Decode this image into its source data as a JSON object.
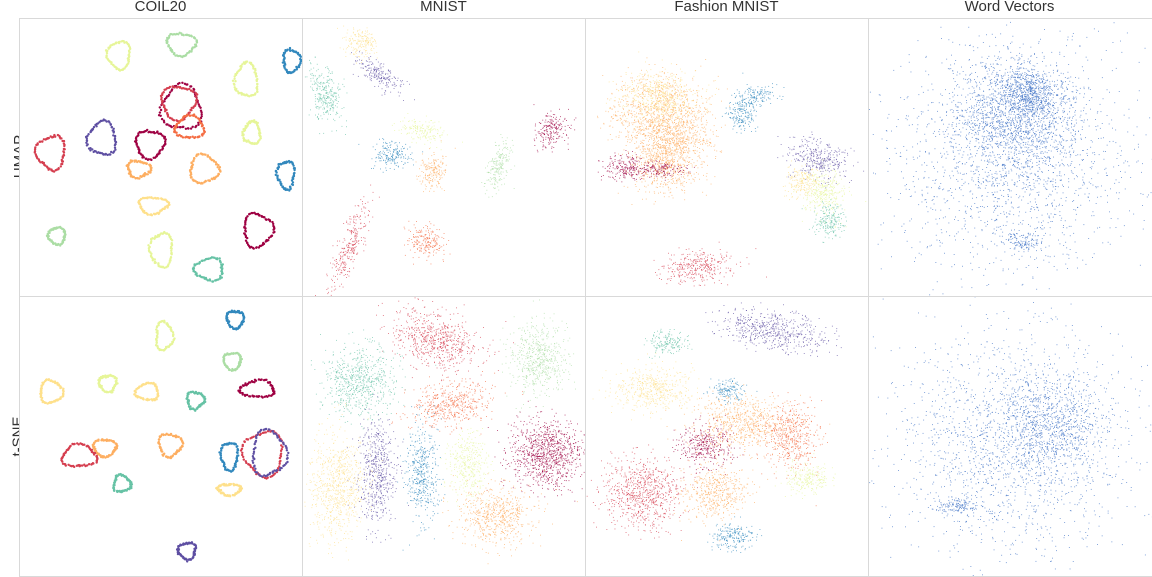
{
  "columns": [
    "COIL20",
    "MNIST",
    "Fashion MNIST",
    "Word Vectors"
  ],
  "rows": [
    "UMAP",
    "t-SNE"
  ],
  "colors": {
    "palette": [
      "#9e0142",
      "#d53e4f",
      "#f46d43",
      "#fdae61",
      "#fee08b",
      "#e6f598",
      "#abdda4",
      "#66c2a5",
      "#3288bd",
      "#5e4fa2"
    ],
    "word_vectors": "#3b6fc4",
    "frame": "#d9d9d9",
    "background": "#ffffff"
  },
  "chart_data": [
    {
      "type": "scatter",
      "row": "UMAP",
      "column": "COIL20",
      "grid": false,
      "axes": "hidden",
      "xlim": [
        0,
        100
      ],
      "ylim": [
        0,
        100
      ],
      "clusters": [
        {
          "shape": "loop",
          "x": 35,
          "y": 87,
          "rx": 4,
          "ry": 5,
          "color": 5
        },
        {
          "shape": "loop",
          "x": 57,
          "y": 91,
          "rx": 5,
          "ry": 4,
          "color": 6
        },
        {
          "shape": "loop",
          "x": 80,
          "y": 78,
          "rx": 4,
          "ry": 6,
          "color": 5
        },
        {
          "shape": "loop",
          "x": 96,
          "y": 85,
          "rx": 3,
          "ry": 4,
          "color": 8
        },
        {
          "shape": "loop",
          "x": 57,
          "y": 68,
          "rx": 7,
          "ry": 8,
          "color": 0
        },
        {
          "shape": "loop",
          "x": 56,
          "y": 70,
          "rx": 6,
          "ry": 6,
          "color": 1
        },
        {
          "shape": "loop",
          "x": 60,
          "y": 61,
          "rx": 5,
          "ry": 4,
          "color": 2
        },
        {
          "shape": "loop",
          "x": 29,
          "y": 57,
          "rx": 5,
          "ry": 6,
          "color": 9
        },
        {
          "shape": "loop",
          "x": 11,
          "y": 52,
          "rx": 5,
          "ry": 6,
          "color": 1
        },
        {
          "shape": "loop",
          "x": 46,
          "y": 55,
          "rx": 5,
          "ry": 5,
          "color": 0
        },
        {
          "shape": "loop",
          "x": 42,
          "y": 46,
          "rx": 4,
          "ry": 3,
          "color": 3
        },
        {
          "shape": "loop",
          "x": 65,
          "y": 46,
          "rx": 5,
          "ry": 5,
          "color": 3
        },
        {
          "shape": "loop",
          "x": 82,
          "y": 59,
          "rx": 3,
          "ry": 4,
          "color": 5
        },
        {
          "shape": "loop",
          "x": 94,
          "y": 44,
          "rx": 3,
          "ry": 5,
          "color": 8
        },
        {
          "shape": "loop",
          "x": 47,
          "y": 33,
          "rx": 5,
          "ry": 3,
          "color": 4
        },
        {
          "shape": "loop",
          "x": 50,
          "y": 17,
          "rx": 4,
          "ry": 6,
          "color": 5
        },
        {
          "shape": "loop",
          "x": 13,
          "y": 22,
          "rx": 3,
          "ry": 3,
          "color": 6
        },
        {
          "shape": "loop",
          "x": 84,
          "y": 24,
          "rx": 5,
          "ry": 6,
          "color": 0
        },
        {
          "shape": "loop",
          "x": 67,
          "y": 10,
          "rx": 5,
          "ry": 4,
          "color": 7
        }
      ]
    },
    {
      "type": "scatter",
      "row": "UMAP",
      "column": "MNIST",
      "grid": false,
      "axes": "hidden",
      "xlim": [
        0,
        100
      ],
      "ylim": [
        0,
        100
      ],
      "clusters": [
        {
          "shape": "blob",
          "x": 20,
          "y": 92,
          "rx": 6,
          "ry": 6,
          "angle": 10,
          "color": 4
        },
        {
          "shape": "blob",
          "x": 27,
          "y": 80,
          "rx": 10,
          "ry": 4,
          "angle": 35,
          "color": 9
        },
        {
          "shape": "blob",
          "x": 8,
          "y": 73,
          "rx": 6,
          "ry": 11,
          "angle": -15,
          "color": 7
        },
        {
          "shape": "blob",
          "x": 42,
          "y": 60,
          "rx": 8,
          "ry": 4,
          "angle": 10,
          "color": 5
        },
        {
          "shape": "blob",
          "x": 31,
          "y": 51,
          "rx": 7,
          "ry": 5,
          "angle": 0,
          "color": 8
        },
        {
          "shape": "blob",
          "x": 46,
          "y": 46,
          "rx": 5,
          "ry": 7,
          "angle": 0,
          "color": 3
        },
        {
          "shape": "blob",
          "x": 69,
          "y": 47,
          "rx": 4,
          "ry": 10,
          "angle": 15,
          "color": 6
        },
        {
          "shape": "blob",
          "x": 88,
          "y": 60,
          "rx": 6,
          "ry": 7,
          "angle": 0,
          "color": 0
        },
        {
          "shape": "blob",
          "x": 16,
          "y": 18,
          "rx": 4,
          "ry": 17,
          "angle": 20,
          "color": 1
        },
        {
          "shape": "blob",
          "x": 43,
          "y": 20,
          "rx": 7,
          "ry": 6,
          "angle": 0,
          "color": 2
        }
      ]
    },
    {
      "type": "scatter",
      "row": "UMAP",
      "column": "Fashion MNIST",
      "grid": false,
      "axes": "hidden",
      "xlim": [
        0,
        100
      ],
      "ylim": [
        0,
        100
      ],
      "clusters": [
        {
          "shape": "blob",
          "x": 26,
          "y": 66,
          "rx": 18,
          "ry": 14,
          "angle": 0,
          "color": 3
        },
        {
          "shape": "blob",
          "x": 26,
          "y": 72,
          "rx": 14,
          "ry": 10,
          "angle": 0,
          "color": 4
        },
        {
          "shape": "blob",
          "x": 30,
          "y": 56,
          "rx": 14,
          "ry": 10,
          "angle": 0,
          "color": 3
        },
        {
          "shape": "blob",
          "x": 28,
          "y": 47,
          "rx": 12,
          "ry": 10,
          "angle": 0,
          "color": 3
        },
        {
          "shape": "blob",
          "x": 14,
          "y": 47,
          "rx": 8,
          "ry": 5,
          "angle": 0,
          "color": 0
        },
        {
          "shape": "blob",
          "x": 26,
          "y": 46,
          "rx": 9,
          "ry": 3,
          "angle": 0,
          "color": 0
        },
        {
          "shape": "blob",
          "x": 59,
          "y": 72,
          "rx": 8,
          "ry": 4,
          "angle": -10,
          "color": 8
        },
        {
          "shape": "blob",
          "x": 55,
          "y": 65,
          "rx": 5,
          "ry": 5,
          "angle": 0,
          "color": 8
        },
        {
          "shape": "blob",
          "x": 82,
          "y": 50,
          "rx": 11,
          "ry": 7,
          "angle": 15,
          "color": 9
        },
        {
          "shape": "blob",
          "x": 84,
          "y": 38,
          "rx": 8,
          "ry": 9,
          "angle": 0,
          "color": 5
        },
        {
          "shape": "blob",
          "x": 86,
          "y": 27,
          "rx": 6,
          "ry": 6,
          "angle": 0,
          "color": 7
        },
        {
          "shape": "blob",
          "x": 76,
          "y": 42,
          "rx": 6,
          "ry": 6,
          "angle": 0,
          "color": 4
        },
        {
          "shape": "blob",
          "x": 40,
          "y": 11,
          "rx": 13,
          "ry": 6,
          "angle": 0,
          "color": 1
        }
      ]
    },
    {
      "type": "scatter",
      "row": "UMAP",
      "column": "Word Vectors",
      "grid": false,
      "axes": "hidden",
      "xlim": [
        0,
        100
      ],
      "ylim": [
        0,
        100
      ],
      "clusters": [
        {
          "shape": "blob",
          "x": 52,
          "y": 66,
          "rx": 22,
          "ry": 20,
          "angle": 0,
          "color": "word_vectors",
          "density": 0.9
        },
        {
          "shape": "blob",
          "x": 56,
          "y": 74,
          "rx": 10,
          "ry": 8,
          "angle": 0,
          "color": "word_vectors",
          "density": 1.3
        },
        {
          "shape": "blob",
          "x": 50,
          "y": 50,
          "rx": 42,
          "ry": 42,
          "angle": 0,
          "color": "word_vectors",
          "density": 0.35
        },
        {
          "shape": "blob",
          "x": 55,
          "y": 20,
          "rx": 6,
          "ry": 3,
          "angle": 0,
          "color": "word_vectors",
          "density": 1
        }
      ]
    },
    {
      "type": "scatter",
      "row": "t-SNE",
      "column": "COIL20",
      "grid": false,
      "axes": "hidden",
      "xlim": [
        0,
        100
      ],
      "ylim": [
        0,
        100
      ],
      "clusters": [
        {
          "shape": "loop",
          "x": 51,
          "y": 86,
          "rx": 3,
          "ry": 5,
          "color": 5
        },
        {
          "shape": "loop",
          "x": 76,
          "y": 92,
          "rx": 3,
          "ry": 3,
          "color": 8
        },
        {
          "shape": "loop",
          "x": 75,
          "y": 77,
          "rx": 3,
          "ry": 3,
          "color": 6
        },
        {
          "shape": "loop",
          "x": 31,
          "y": 69,
          "rx": 3,
          "ry": 3,
          "color": 5
        },
        {
          "shape": "loop",
          "x": 11,
          "y": 66,
          "rx": 4,
          "ry": 4,
          "color": 4
        },
        {
          "shape": "loop",
          "x": 45,
          "y": 66,
          "rx": 4,
          "ry": 3,
          "color": 4
        },
        {
          "shape": "loop",
          "x": 62,
          "y": 63,
          "rx": 3,
          "ry": 3,
          "color": 7
        },
        {
          "shape": "loop",
          "x": 84,
          "y": 67,
          "rx": 6,
          "ry": 3,
          "color": 0
        },
        {
          "shape": "loop",
          "x": 30,
          "y": 46,
          "rx": 4,
          "ry": 3,
          "color": 3
        },
        {
          "shape": "loop",
          "x": 53,
          "y": 47,
          "rx": 4,
          "ry": 4,
          "color": 3
        },
        {
          "shape": "loop",
          "x": 21,
          "y": 43,
          "rx": 6,
          "ry": 4,
          "color": 1
        },
        {
          "shape": "loop",
          "x": 74,
          "y": 43,
          "rx": 3,
          "ry": 5,
          "color": 8
        },
        {
          "shape": "loop",
          "x": 86,
          "y": 44,
          "rx": 7,
          "ry": 8,
          "color": 1
        },
        {
          "shape": "loop",
          "x": 88,
          "y": 44,
          "rx": 6,
          "ry": 8,
          "color": 9
        },
        {
          "shape": "loop",
          "x": 36,
          "y": 33,
          "rx": 3,
          "ry": 3,
          "color": 7
        },
        {
          "shape": "loop",
          "x": 74,
          "y": 31,
          "rx": 4,
          "ry": 2,
          "color": 4
        },
        {
          "shape": "loop",
          "x": 59,
          "y": 9,
          "rx": 3,
          "ry": 3,
          "color": 9
        }
      ]
    },
    {
      "type": "scatter",
      "row": "t-SNE",
      "column": "MNIST",
      "grid": false,
      "axes": "hidden",
      "xlim": [
        0,
        100
      ],
      "ylim": [
        0,
        100
      ],
      "clusters": [
        {
          "shape": "blob",
          "x": 47,
          "y": 85,
          "rx": 17,
          "ry": 10,
          "angle": 20,
          "color": 1
        },
        {
          "shape": "blob",
          "x": 20,
          "y": 70,
          "rx": 13,
          "ry": 13,
          "angle": 0,
          "color": 7
        },
        {
          "shape": "blob",
          "x": 83,
          "y": 78,
          "rx": 11,
          "ry": 13,
          "angle": 0,
          "color": 6
        },
        {
          "shape": "blob",
          "x": 52,
          "y": 62,
          "rx": 15,
          "ry": 8,
          "angle": -10,
          "color": 2
        },
        {
          "shape": "blob",
          "x": 26,
          "y": 37,
          "rx": 7,
          "ry": 20,
          "angle": 0,
          "color": 9
        },
        {
          "shape": "blob",
          "x": 42,
          "y": 37,
          "rx": 6,
          "ry": 18,
          "angle": 0,
          "color": 8
        },
        {
          "shape": "blob",
          "x": 58,
          "y": 40,
          "rx": 7,
          "ry": 12,
          "angle": 0,
          "color": 5
        },
        {
          "shape": "blob",
          "x": 86,
          "y": 44,
          "rx": 13,
          "ry": 13,
          "angle": 0,
          "color": 0,
          "density": 1.5
        },
        {
          "shape": "blob",
          "x": 12,
          "y": 32,
          "rx": 10,
          "ry": 20,
          "angle": 0,
          "color": 4
        },
        {
          "shape": "blob",
          "x": 68,
          "y": 22,
          "rx": 14,
          "ry": 11,
          "angle": 0,
          "color": 3
        }
      ]
    },
    {
      "type": "scatter",
      "row": "t-SNE",
      "column": "Fashion MNIST",
      "grid": false,
      "axes": "hidden",
      "xlim": [
        0,
        100
      ],
      "ylim": [
        0,
        100
      ],
      "clusters": [
        {
          "shape": "blob",
          "x": 66,
          "y": 88,
          "rx": 20,
          "ry": 7,
          "angle": 10,
          "color": 9
        },
        {
          "shape": "blob",
          "x": 28,
          "y": 84,
          "rx": 8,
          "ry": 4,
          "angle": 0,
          "color": 7
        },
        {
          "shape": "blob",
          "x": 24,
          "y": 67,
          "rx": 15,
          "ry": 8,
          "angle": 0,
          "color": 4
        },
        {
          "shape": "blob",
          "x": 50,
          "y": 67,
          "rx": 6,
          "ry": 4,
          "angle": 0,
          "color": 8
        },
        {
          "shape": "blob",
          "x": 55,
          "y": 55,
          "rx": 18,
          "ry": 10,
          "angle": 0,
          "color": 3
        },
        {
          "shape": "blob",
          "x": 42,
          "y": 47,
          "rx": 10,
          "ry": 8,
          "angle": 0,
          "color": 0
        },
        {
          "shape": "blob",
          "x": 72,
          "y": 50,
          "rx": 10,
          "ry": 12,
          "angle": 0,
          "color": 2
        },
        {
          "shape": "blob",
          "x": 20,
          "y": 30,
          "rx": 14,
          "ry": 14,
          "angle": 0,
          "color": 1
        },
        {
          "shape": "blob",
          "x": 45,
          "y": 30,
          "rx": 12,
          "ry": 10,
          "angle": 0,
          "color": 3
        },
        {
          "shape": "blob",
          "x": 52,
          "y": 14,
          "rx": 8,
          "ry": 5,
          "angle": 0,
          "color": 8
        },
        {
          "shape": "blob",
          "x": 78,
          "y": 35,
          "rx": 8,
          "ry": 6,
          "angle": 0,
          "color": 5
        }
      ]
    },
    {
      "type": "scatter",
      "row": "t-SNE",
      "column": "Word Vectors",
      "grid": false,
      "axes": "hidden",
      "xlim": [
        0,
        100
      ],
      "ylim": [
        0,
        100
      ],
      "clusters": [
        {
          "shape": "blob",
          "x": 50,
          "y": 48,
          "rx": 42,
          "ry": 40,
          "angle": 0,
          "color": "word_vectors",
          "density": 0.9
        },
        {
          "shape": "blob",
          "x": 65,
          "y": 55,
          "rx": 20,
          "ry": 18,
          "angle": 0,
          "color": "word_vectors",
          "density": 0.6
        },
        {
          "shape": "blob",
          "x": 30,
          "y": 25,
          "rx": 8,
          "ry": 3,
          "angle": 0,
          "color": "word_vectors",
          "density": 0.8
        }
      ]
    }
  ]
}
